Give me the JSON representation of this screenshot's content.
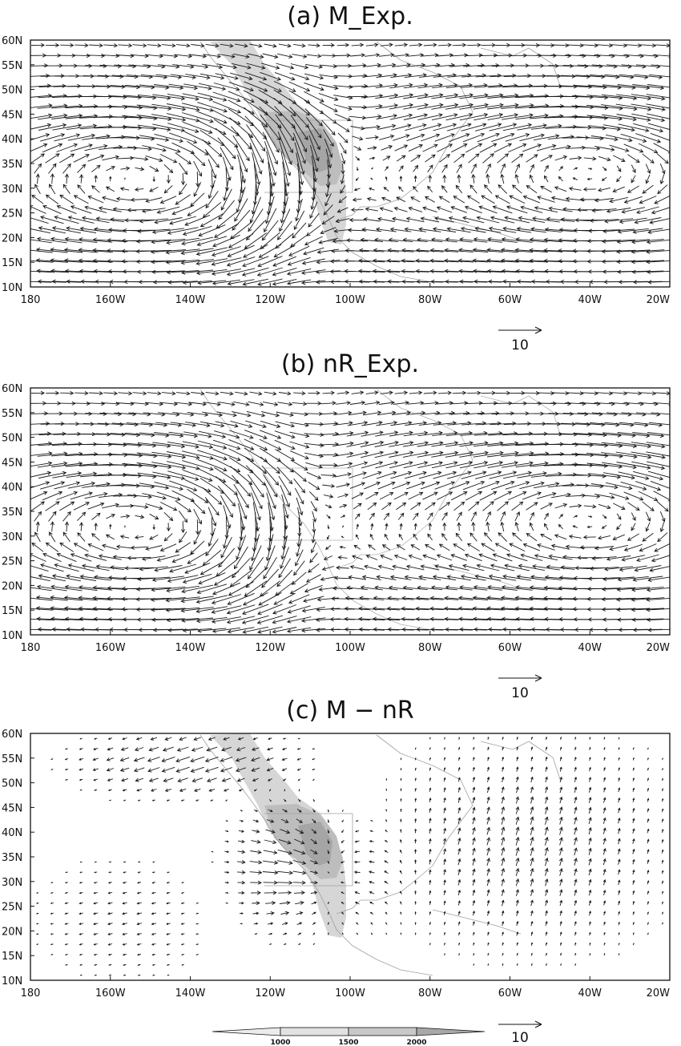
{
  "panels": [
    {
      "id": "a",
      "title": "(a) M_Exp.",
      "ref_label": "10",
      "terrain": true,
      "field": "full_m"
    },
    {
      "id": "b",
      "title": "(b) nR_Exp.",
      "ref_label": "10",
      "terrain": false,
      "field": "full_nr"
    },
    {
      "id": "c",
      "title": "(c) M − nR",
      "ref_label": "10",
      "terrain": true,
      "field": "diff"
    }
  ],
  "lat_ticks": [
    "60N",
    "55N",
    "50N",
    "45N",
    "40N",
    "35N",
    "30N",
    "25N",
    "20N",
    "15N",
    "10N"
  ],
  "lon_ticks": [
    "180",
    "160W",
    "140W",
    "120W",
    "100W",
    "80W",
    "60W",
    "40W",
    "20W"
  ],
  "colorbar": {
    "levels": [
      "1000",
      "1500",
      "2000"
    ],
    "colors": [
      "#e2e2e2",
      "#c8c8c8",
      "#a8a8a8"
    ]
  },
  "colors": {
    "arrow": "#1a1a1a",
    "coast": "#9a9a9a",
    "frame": "#111111"
  }
}
